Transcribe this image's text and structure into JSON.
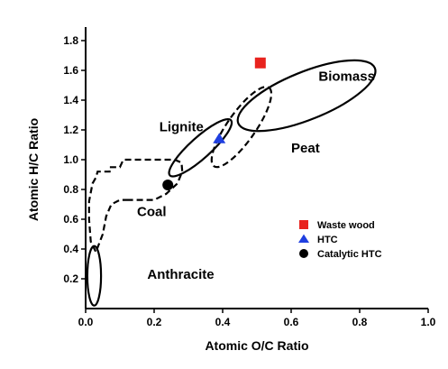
{
  "chart_data": {
    "type": "scatter",
    "xlabel": "Atomic O/C Ratio",
    "ylabel": "Atomic H/C Ratio",
    "xlim": [
      0.0,
      1.0
    ],
    "ylim": [
      0.0,
      1.85
    ],
    "x_ticks": [
      "0.0",
      "0.2",
      "0.4",
      "0.6",
      "0.8",
      "1.0"
    ],
    "y_ticks": [
      "0.2",
      "0.4",
      "0.6",
      "0.8",
      "1.0",
      "1.2",
      "1.4",
      "1.6",
      "1.8"
    ],
    "grid": false,
    "legend_position": "lower-right",
    "series": [
      {
        "name": "Waste wood",
        "marker": "square",
        "color": "#e8231e",
        "points": [
          {
            "x": 0.51,
            "y": 1.65
          }
        ]
      },
      {
        "name": "HTC",
        "marker": "triangle",
        "color": "#1f3fe0",
        "points": [
          {
            "x": 0.39,
            "y": 1.14
          }
        ]
      },
      {
        "name": "Catalytic HTC",
        "marker": "circle",
        "color": "#000000",
        "points": [
          {
            "x": 0.24,
            "y": 0.83
          }
        ]
      }
    ],
    "regions": [
      {
        "name": "Biomass",
        "style": "solid",
        "cx": 0.645,
        "cy": 1.43,
        "rx": 0.215,
        "ry": 0.16,
        "rotate": -22,
        "label_x": 0.68,
        "label_y": 1.53
      },
      {
        "name": "Peat",
        "style": "dashed",
        "cx": 0.455,
        "cy": 1.22,
        "rx": 0.14,
        "ry": 0.095,
        "rotate": -55,
        "label_x": 0.6,
        "label_y": 1.05
      },
      {
        "name": "Lignite",
        "style": "solid",
        "cx": 0.335,
        "cy": 1.08,
        "rx": 0.12,
        "ry": 0.07,
        "rotate": -42,
        "label_x": 0.215,
        "label_y": 1.19
      },
      {
        "name": "Anthracite",
        "style": "solid",
        "cx": 0.025,
        "cy": 0.22,
        "rx": 0.02,
        "ry": 0.2,
        "rotate": 0,
        "label_x": 0.18,
        "label_y": 0.2
      },
      {
        "name": "Coal",
        "style": "dashed",
        "path": [
          [
            0.12,
            0.73
          ],
          [
            0.2,
            0.73
          ],
          [
            0.235,
            0.77
          ],
          [
            0.268,
            0.84
          ],
          [
            0.282,
            0.92
          ],
          [
            0.28,
            0.98
          ],
          [
            0.26,
            1.0
          ],
          [
            0.11,
            1.0
          ],
          [
            0.1,
            0.95
          ],
          [
            0.07,
            0.95
          ],
          [
            0.07,
            0.92
          ],
          [
            0.035,
            0.92
          ],
          [
            0.03,
            0.88
          ],
          [
            0.02,
            0.84
          ],
          [
            0.01,
            0.72
          ],
          [
            0.01,
            0.6
          ],
          [
            0.015,
            0.45
          ],
          [
            0.03,
            0.38
          ],
          [
            0.05,
            0.5
          ],
          [
            0.06,
            0.62
          ],
          [
            0.075,
            0.7
          ],
          [
            0.1,
            0.73
          ],
          [
            0.12,
            0.73
          ]
        ],
        "label_x": 0.15,
        "label_y": 0.62
      }
    ]
  }
}
